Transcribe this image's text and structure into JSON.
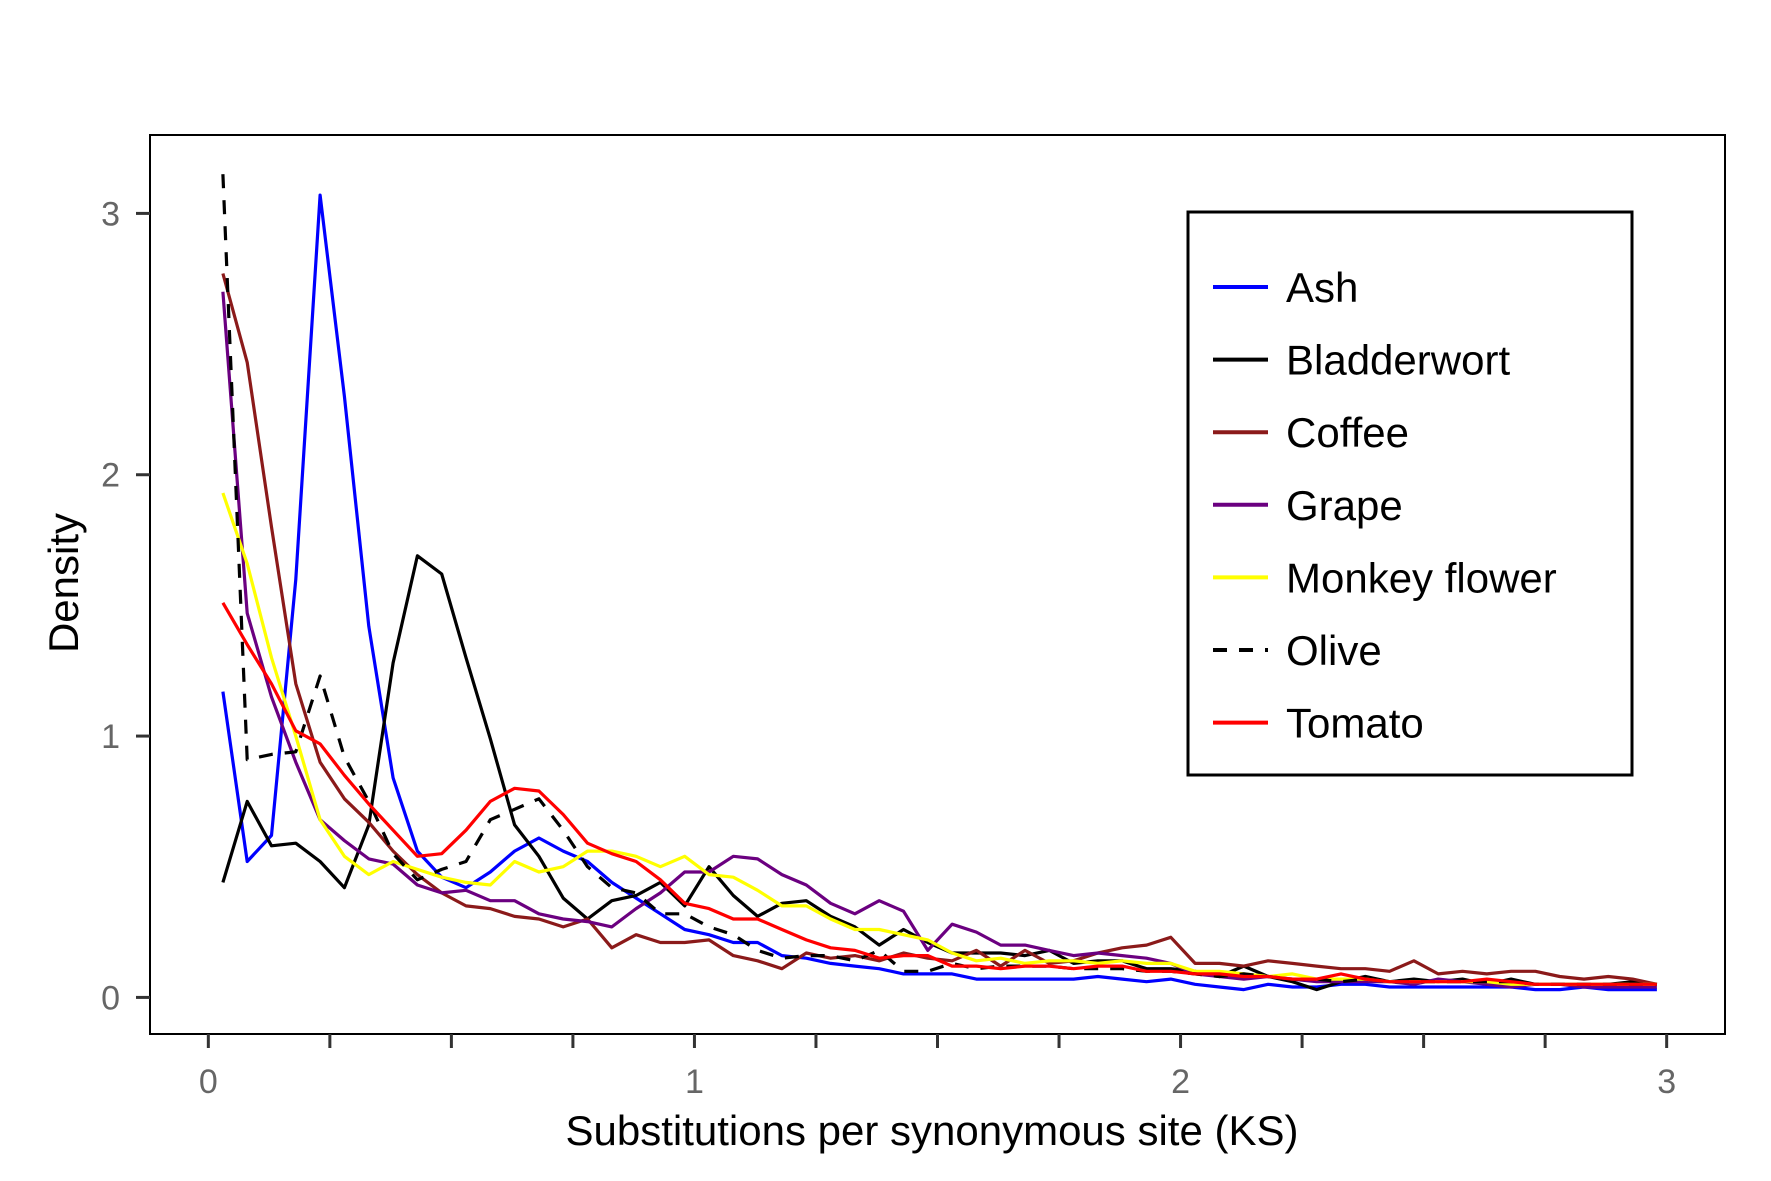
{
  "chart_data": {
    "type": "line",
    "xlabel": "Substitutions per synonymous site (KS)",
    "ylabel": "Density",
    "xlim": [
      -0.12,
      3.12
    ],
    "ylim": [
      -0.14,
      3.3
    ],
    "x_ticks": [
      0,
      1,
      2,
      3
    ],
    "x_tick_labels": [
      "0",
      "1",
      "2",
      "3"
    ],
    "x_minor_ticks": [
      0.25,
      0.5,
      0.75,
      1.25,
      1.5,
      1.75,
      2.25,
      2.5,
      2.75
    ],
    "y_ticks": [
      0,
      1,
      2,
      3
    ],
    "y_tick_labels": [
      "0",
      "1",
      "2",
      "3"
    ],
    "grid": false,
    "legend_position": "top-right",
    "x": [
      0.03,
      0.08,
      0.13,
      0.18,
      0.23,
      0.28,
      0.33,
      0.38,
      0.43,
      0.48,
      0.53,
      0.58,
      0.63,
      0.68,
      0.73,
      0.78,
      0.83,
      0.88,
      0.93,
      0.98,
      1.03,
      1.08,
      1.13,
      1.18,
      1.23,
      1.28,
      1.33,
      1.38,
      1.43,
      1.48,
      1.53,
      1.58,
      1.63,
      1.68,
      1.73,
      1.78,
      1.83,
      1.88,
      1.93,
      1.98,
      2.03,
      2.08,
      2.13,
      2.18,
      2.23,
      2.28,
      2.33,
      2.38,
      2.43,
      2.48,
      2.53,
      2.58,
      2.63,
      2.68,
      2.73,
      2.78,
      2.83,
      2.88,
      2.93,
      2.98
    ],
    "series": [
      {
        "name": "Ash",
        "color": "#0000ff",
        "dash": "solid",
        "values": [
          1.17,
          0.52,
          0.62,
          1.6,
          3.07,
          2.3,
          1.42,
          0.84,
          0.56,
          0.46,
          0.42,
          0.48,
          0.56,
          0.61,
          0.56,
          0.52,
          0.44,
          0.38,
          0.32,
          0.26,
          0.24,
          0.21,
          0.21,
          0.16,
          0.15,
          0.13,
          0.12,
          0.11,
          0.09,
          0.09,
          0.09,
          0.07,
          0.07,
          0.07,
          0.07,
          0.07,
          0.08,
          0.07,
          0.06,
          0.07,
          0.05,
          0.04,
          0.03,
          0.05,
          0.04,
          0.04,
          0.05,
          0.05,
          0.04,
          0.04,
          0.04,
          0.04,
          0.04,
          0.04,
          0.03,
          0.03,
          0.04,
          0.03,
          0.03,
          0.03
        ]
      },
      {
        "name": "Bladderwort",
        "color": "#000000",
        "dash": "solid",
        "values": [
          0.44,
          0.75,
          0.58,
          0.59,
          0.52,
          0.42,
          0.66,
          1.28,
          1.69,
          1.62,
          1.3,
          0.99,
          0.66,
          0.54,
          0.38,
          0.3,
          0.37,
          0.39,
          0.44,
          0.35,
          0.5,
          0.39,
          0.31,
          0.36,
          0.37,
          0.31,
          0.27,
          0.2,
          0.26,
          0.21,
          0.17,
          0.17,
          0.17,
          0.16,
          0.18,
          0.13,
          0.14,
          0.14,
          0.11,
          0.11,
          0.1,
          0.08,
          0.12,
          0.08,
          0.06,
          0.03,
          0.06,
          0.08,
          0.06,
          0.07,
          0.06,
          0.07,
          0.05,
          0.07,
          0.05,
          0.05,
          0.05,
          0.05,
          0.06,
          0.05
        ]
      },
      {
        "name": "Coffee",
        "color": "#8b1a1a",
        "dash": "solid",
        "values": [
          2.77,
          2.43,
          1.8,
          1.2,
          0.9,
          0.76,
          0.67,
          0.56,
          0.47,
          0.4,
          0.35,
          0.34,
          0.31,
          0.3,
          0.27,
          0.3,
          0.19,
          0.24,
          0.21,
          0.21,
          0.22,
          0.16,
          0.14,
          0.11,
          0.17,
          0.15,
          0.16,
          0.14,
          0.17,
          0.15,
          0.14,
          0.18,
          0.12,
          0.18,
          0.13,
          0.14,
          0.17,
          0.19,
          0.2,
          0.23,
          0.13,
          0.13,
          0.12,
          0.14,
          0.13,
          0.12,
          0.11,
          0.11,
          0.1,
          0.14,
          0.09,
          0.1,
          0.09,
          0.1,
          0.1,
          0.08,
          0.07,
          0.08,
          0.07,
          0.05
        ]
      },
      {
        "name": "Grape",
        "color": "#6b0080",
        "dash": "solid",
        "values": [
          2.7,
          1.47,
          1.15,
          0.9,
          0.68,
          0.6,
          0.53,
          0.51,
          0.43,
          0.4,
          0.41,
          0.37,
          0.37,
          0.32,
          0.3,
          0.29,
          0.27,
          0.34,
          0.4,
          0.48,
          0.48,
          0.54,
          0.53,
          0.47,
          0.43,
          0.36,
          0.32,
          0.37,
          0.33,
          0.18,
          0.28,
          0.25,
          0.2,
          0.2,
          0.18,
          0.16,
          0.17,
          0.16,
          0.15,
          0.13,
          0.09,
          0.08,
          0.07,
          0.08,
          0.07,
          0.06,
          0.06,
          0.06,
          0.06,
          0.05,
          0.07,
          0.06,
          0.05,
          0.04,
          0.05,
          0.05,
          0.04,
          0.04,
          0.04,
          0.04
        ]
      },
      {
        "name": "Monkey flower",
        "color": "#ffff00",
        "dash": "solid",
        "values": [
          1.93,
          1.66,
          1.3,
          1.0,
          0.68,
          0.54,
          0.47,
          0.52,
          0.49,
          0.46,
          0.44,
          0.43,
          0.52,
          0.48,
          0.5,
          0.56,
          0.56,
          0.54,
          0.5,
          0.54,
          0.47,
          0.46,
          0.41,
          0.35,
          0.35,
          0.3,
          0.26,
          0.26,
          0.24,
          0.22,
          0.17,
          0.14,
          0.15,
          0.13,
          0.14,
          0.14,
          0.13,
          0.14,
          0.13,
          0.13,
          0.1,
          0.1,
          0.09,
          0.08,
          0.09,
          0.07,
          0.07,
          0.07,
          0.06,
          0.06,
          0.06,
          0.06,
          0.06,
          0.05,
          0.05,
          0.05,
          0.05,
          0.05,
          0.05,
          0.05
        ]
      },
      {
        "name": "Olive",
        "color": "#000000",
        "dash": "dashed",
        "values": [
          3.15,
          0.91,
          0.93,
          0.94,
          1.23,
          0.92,
          0.75,
          0.55,
          0.45,
          0.49,
          0.52,
          0.68,
          0.72,
          0.76,
          0.64,
          0.5,
          0.42,
          0.4,
          0.32,
          0.32,
          0.27,
          0.24,
          0.18,
          0.15,
          0.16,
          0.16,
          0.14,
          0.18,
          0.1,
          0.1,
          0.13,
          0.11,
          0.12,
          0.12,
          0.12,
          0.11,
          0.11,
          0.11,
          0.1,
          0.1,
          0.09,
          0.08,
          0.09,
          0.08,
          0.07,
          0.07,
          0.06,
          0.07,
          0.06,
          0.06,
          0.06,
          0.06,
          0.06,
          0.06,
          0.05,
          0.05,
          0.05,
          0.05,
          0.05,
          0.05
        ]
      },
      {
        "name": "Tomato",
        "color": "#ff0000",
        "dash": "solid",
        "values": [
          1.51,
          1.35,
          1.2,
          1.02,
          0.97,
          0.85,
          0.74,
          0.64,
          0.54,
          0.55,
          0.64,
          0.75,
          0.8,
          0.79,
          0.7,
          0.59,
          0.55,
          0.52,
          0.45,
          0.36,
          0.34,
          0.3,
          0.3,
          0.26,
          0.22,
          0.19,
          0.18,
          0.15,
          0.16,
          0.16,
          0.12,
          0.12,
          0.11,
          0.12,
          0.12,
          0.11,
          0.12,
          0.12,
          0.1,
          0.1,
          0.09,
          0.09,
          0.08,
          0.08,
          0.07,
          0.07,
          0.09,
          0.07,
          0.06,
          0.06,
          0.06,
          0.06,
          0.07,
          0.06,
          0.05,
          0.05,
          0.05,
          0.05,
          0.05,
          0.05
        ]
      }
    ]
  }
}
